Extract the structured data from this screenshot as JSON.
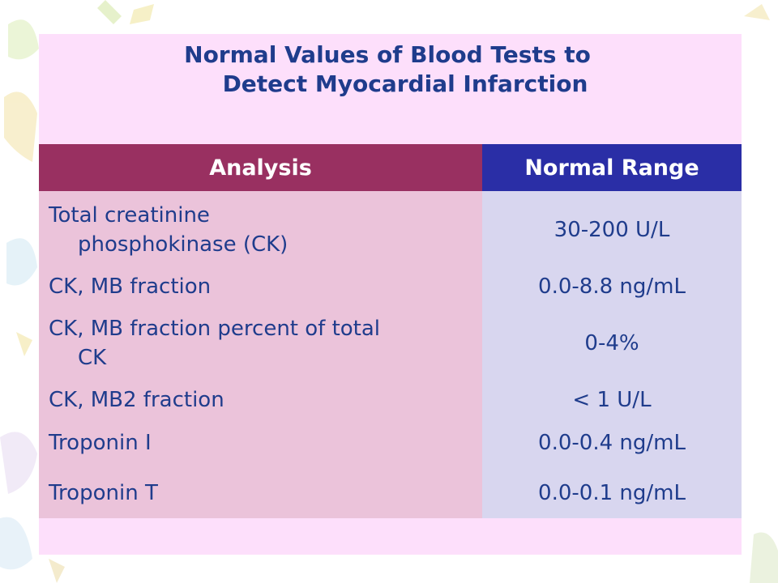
{
  "slide": {
    "title_line1": "Normal Values of Blood Tests to",
    "title_line2": "Detect Myocardial Infarction"
  },
  "table": {
    "headers": {
      "analysis": "Analysis",
      "normal_range": "Normal Range"
    },
    "rows": [
      {
        "analysis_line1": "Total creatinine",
        "analysis_line2": "phosphokinase (CK)",
        "range": "30-200 U/L"
      },
      {
        "analysis_line1": "CK, MB fraction",
        "analysis_line2": "",
        "range": "0.0-8.8 ng/mL"
      },
      {
        "analysis_line1": "CK, MB fraction percent of total",
        "analysis_line2": "CK",
        "range": "0-4%"
      },
      {
        "analysis_line1": "CK, MB2 fraction",
        "analysis_line2": "",
        "range": "< 1 U/L"
      },
      {
        "analysis_line1": "Troponin I",
        "analysis_line2": "",
        "range": "0.0-0.4 ng/mL"
      },
      {
        "analysis_line1": "Troponin T",
        "analysis_line2": "",
        "range": "0.0-0.1 ng/mL"
      }
    ]
  },
  "colors": {
    "panel_background": "#fddffb",
    "title_text": "#1f3c8c",
    "header_analysis": "#993061",
    "header_range": "#2a2ea6",
    "analysis_cells": "#ebc3da",
    "range_cells": "#d8d6ef"
  }
}
